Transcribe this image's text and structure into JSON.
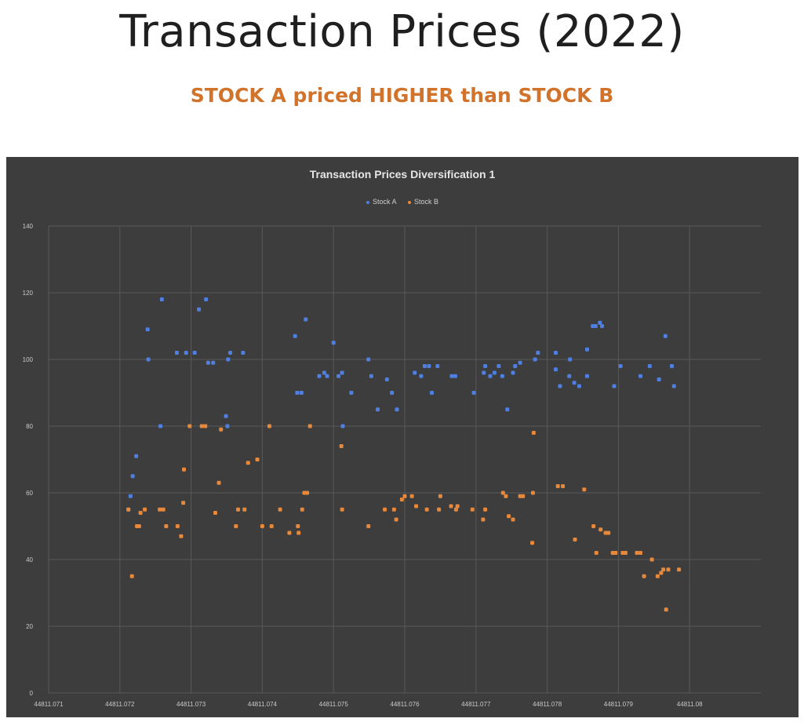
{
  "page": {
    "title": "Transaction Prices (2022)",
    "subtitle": "STOCK A priced HIGHER than STOCK B"
  },
  "chart_data": {
    "type": "scatter",
    "title": "Transaction Prices Diversification 1",
    "xlabel": "",
    "ylabel": "",
    "xlim": [
      44811.071,
      44811.081
    ],
    "ylim": [
      0,
      140
    ],
    "x_ticks": [
      44811.071,
      44811.072,
      44811.073,
      44811.074,
      44811.075,
      44811.076,
      44811.077,
      44811.078,
      44811.079,
      44811.08
    ],
    "x_tick_labels": [
      "44811.071",
      "44811.072",
      "44811.073",
      "44811.074",
      "44811.075",
      "44811.076",
      "44811.077",
      "44811.078",
      "44811.079",
      "44811.08"
    ],
    "y_ticks": [
      0,
      20,
      40,
      60,
      80,
      100,
      120,
      140
    ],
    "y_tick_labels": [
      "0",
      "20",
      "40",
      "60",
      "80",
      "100",
      "120",
      "140"
    ],
    "grid": true,
    "legend_position": "top-center",
    "series": [
      {
        "name": "Stock A",
        "color": "#4f7fe0",
        "points": [
          [
            44811.07212,
            55
          ],
          [
            44811.07215,
            59
          ],
          [
            44811.07218,
            65
          ],
          [
            44811.07223,
            71
          ],
          [
            44811.07239,
            109
          ],
          [
            44811.0724,
            100
          ],
          [
            44811.07257,
            80
          ],
          [
            44811.07259,
            118
          ],
          [
            44811.0728,
            102
          ],
          [
            44811.07293,
            102
          ],
          [
            44811.07305,
            102
          ],
          [
            44811.07311,
            115
          ],
          [
            44811.07321,
            118
          ],
          [
            44811.07324,
            99
          ],
          [
            44811.07331,
            99
          ],
          [
            44811.07349,
            83
          ],
          [
            44811.07351,
            80
          ],
          [
            44811.07352,
            100
          ],
          [
            44811.07355,
            102
          ],
          [
            44811.07373,
            102
          ],
          [
            44811.07446,
            107
          ],
          [
            44811.07449,
            90
          ],
          [
            44811.07455,
            90
          ],
          [
            44811.07461,
            112
          ],
          [
            44811.0748,
            95
          ],
          [
            44811.07487,
            96
          ],
          [
            44811.07491,
            95
          ],
          [
            44811.075,
            105
          ],
          [
            44811.07507,
            95
          ],
          [
            44811.07512,
            96
          ],
          [
            44811.07513,
            80
          ],
          [
            44811.07525,
            90
          ],
          [
            44811.07549,
            100
          ],
          [
            44811.07553,
            95
          ],
          [
            44811.07562,
            85
          ],
          [
            44811.07575,
            94
          ],
          [
            44811.07582,
            90
          ],
          [
            44811.07589,
            85
          ],
          [
            44811.07614,
            96
          ],
          [
            44811.07623,
            95
          ],
          [
            44811.07628,
            98
          ],
          [
            44811.07634,
            98
          ],
          [
            44811.07638,
            90
          ],
          [
            44811.07646,
            98
          ],
          [
            44811.07666,
            95
          ],
          [
            44811.07671,
            95
          ],
          [
            44811.07697,
            90
          ],
          [
            44811.07711,
            96
          ],
          [
            44811.07713,
            98
          ],
          [
            44811.0772,
            95
          ],
          [
            44811.07726,
            96
          ],
          [
            44811.07732,
            98
          ],
          [
            44811.07737,
            95
          ],
          [
            44811.07744,
            85
          ],
          [
            44811.07752,
            96
          ],
          [
            44811.07755,
            98
          ],
          [
            44811.07762,
            99
          ],
          [
            44811.07783,
            100
          ],
          [
            44811.07787,
            102
          ],
          [
            44811.07812,
            102
          ],
          [
            44811.07812,
            97
          ],
          [
            44811.07818,
            92
          ],
          [
            44811.07831,
            95
          ],
          [
            44811.07832,
            100
          ],
          [
            44811.07838,
            93
          ],
          [
            44811.07845,
            92
          ],
          [
            44811.07856,
            103
          ],
          [
            44811.07856,
            95
          ],
          [
            44811.07864,
            110
          ],
          [
            44811.07868,
            110
          ],
          [
            44811.07874,
            111
          ],
          [
            44811.07877,
            110
          ],
          [
            44811.07894,
            92
          ],
          [
            44811.07903,
            98
          ],
          [
            44811.07931,
            95
          ],
          [
            44811.07944,
            98
          ],
          [
            44811.07957,
            94
          ],
          [
            44811.07966,
            107
          ],
          [
            44811.07975,
            98
          ],
          [
            44811.07978,
            92
          ]
        ]
      },
      {
        "name": "Stock B",
        "color": "#e8883a",
        "points": [
          [
            44811.07212,
            55
          ],
          [
            44811.07217,
            35
          ],
          [
            44811.07224,
            50
          ],
          [
            44811.07227,
            50
          ],
          [
            44811.07229,
            54
          ],
          [
            44811.07235,
            55
          ],
          [
            44811.07256,
            55
          ],
          [
            44811.07261,
            55
          ],
          [
            44811.07265,
            50
          ],
          [
            44811.07281,
            50
          ],
          [
            44811.07286,
            47
          ],
          [
            44811.07289,
            57
          ],
          [
            44811.0729,
            67
          ],
          [
            44811.07298,
            80
          ],
          [
            44811.07315,
            80
          ],
          [
            44811.0732,
            80
          ],
          [
            44811.07334,
            54
          ],
          [
            44811.07339,
            63
          ],
          [
            44811.07342,
            79
          ],
          [
            44811.07363,
            50
          ],
          [
            44811.07366,
            55
          ],
          [
            44811.07375,
            55
          ],
          [
            44811.0738,
            69
          ],
          [
            44811.07393,
            70
          ],
          [
            44811.074,
            50
          ],
          [
            44811.0741,
            80
          ],
          [
            44811.07413,
            50
          ],
          [
            44811.07425,
            55
          ],
          [
            44811.07438,
            48
          ],
          [
            44811.0745,
            50
          ],
          [
            44811.07451,
            48
          ],
          [
            44811.07456,
            55
          ],
          [
            44811.07459,
            60
          ],
          [
            44811.07463,
            60
          ],
          [
            44811.07467,
            80
          ],
          [
            44811.07511,
            74
          ],
          [
            44811.07512,
            55
          ],
          [
            44811.07549,
            50
          ],
          [
            44811.07572,
            55
          ],
          [
            44811.07585,
            55
          ],
          [
            44811.07588,
            52
          ],
          [
            44811.07596,
            58
          ],
          [
            44811.076,
            59
          ],
          [
            44811.0761,
            59
          ],
          [
            44811.07616,
            56
          ],
          [
            44811.07631,
            55
          ],
          [
            44811.07648,
            55
          ],
          [
            44811.0765,
            59
          ],
          [
            44811.07665,
            56
          ],
          [
            44811.07672,
            55
          ],
          [
            44811.07674,
            56
          ],
          [
            44811.07695,
            55
          ],
          [
            44811.0771,
            52
          ],
          [
            44811.07713,
            55
          ],
          [
            44811.07738,
            60
          ],
          [
            44811.07742,
            59
          ],
          [
            44811.07746,
            53
          ],
          [
            44811.07752,
            52
          ],
          [
            44811.07762,
            59
          ],
          [
            44811.07766,
            59
          ],
          [
            44811.07779,
            45
          ],
          [
            44811.0778,
            60
          ],
          [
            44811.07781,
            78
          ],
          [
            44811.07815,
            62
          ],
          [
            44811.07822,
            62
          ],
          [
            44811.07839,
            46
          ],
          [
            44811.07852,
            61
          ],
          [
            44811.07865,
            50
          ],
          [
            44811.07869,
            42
          ],
          [
            44811.07875,
            49
          ],
          [
            44811.07882,
            48
          ],
          [
            44811.07886,
            48
          ],
          [
            44811.07892,
            42
          ],
          [
            44811.07896,
            42
          ],
          [
            44811.07906,
            42
          ],
          [
            44811.0791,
            42
          ],
          [
            44811.07926,
            42
          ],
          [
            44811.07931,
            42
          ],
          [
            44811.07936,
            35
          ],
          [
            44811.07947,
            40
          ],
          [
            44811.07955,
            35
          ],
          [
            44811.0796,
            36
          ],
          [
            44811.07963,
            37
          ],
          [
            44811.07967,
            25
          ],
          [
            44811.0797,
            37
          ],
          [
            44811.07985,
            37
          ]
        ]
      }
    ]
  }
}
